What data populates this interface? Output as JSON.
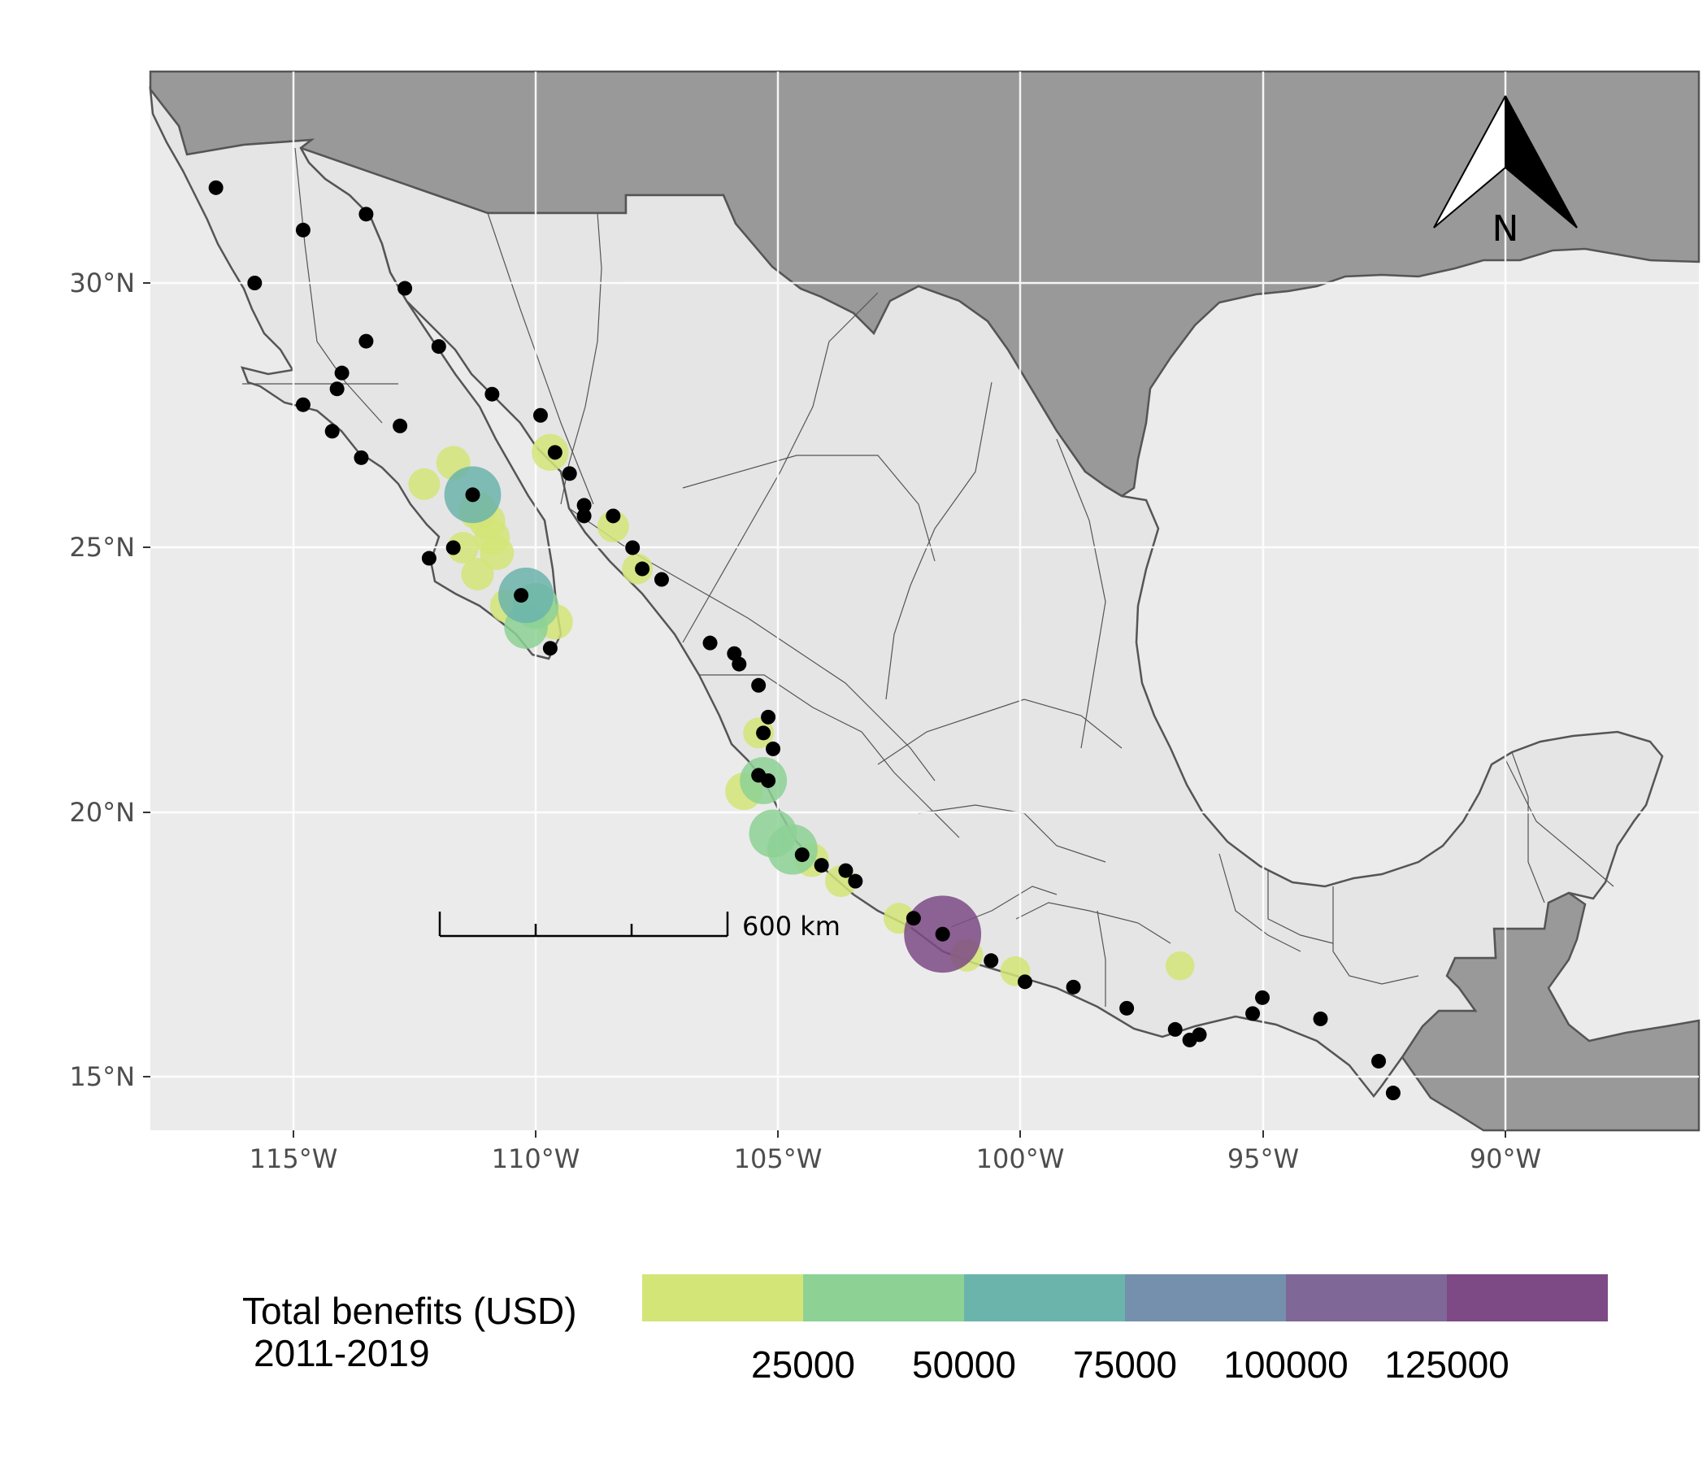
{
  "map": {
    "axes": {
      "x_ticks": [
        "115°W",
        "110°W",
        "105°W",
        "100°W",
        "95°W",
        "90°W"
      ],
      "y_ticks": [
        "30°N",
        "25°N",
        "20°N",
        "15°N"
      ],
      "lon_range": [
        -118,
        -86
      ],
      "lat_range": [
        14,
        34
      ]
    },
    "scale_bar": {
      "label": "600 km"
    },
    "north_arrow": {
      "label": "N"
    },
    "legend": {
      "title_line1": "Total benefits (USD)",
      "title_line2": "2011-2019",
      "ticks": [
        "25000",
        "50000",
        "75000",
        "100000",
        "125000"
      ],
      "bin_colors": [
        "#d4e577",
        "#8dd195",
        "#6bb4ab",
        "#7490ac",
        "#7f6898",
        "#7d4a85"
      ]
    },
    "colors": {
      "ocean": "#ebebeb",
      "mexico": "#e5e5e5",
      "neighbors": "#999999",
      "border": "#555555",
      "site": "#000000"
    }
  },
  "chart_data": {
    "type": "scatter",
    "xlabel": "",
    "ylabel": "",
    "xlim": [
      -118,
      -86
    ],
    "ylim": [
      14,
      34
    ],
    "grid": true,
    "legend_placement": "bottom",
    "site_points": [
      [
        -116.6,
        31.8
      ],
      [
        -115.8,
        30.0
      ],
      [
        -114.8,
        31.0
      ],
      [
        -113.5,
        31.3
      ],
      [
        -112.7,
        29.9
      ],
      [
        -113.5,
        28.9
      ],
      [
        -112.0,
        28.8
      ],
      [
        -114.0,
        28.3
      ],
      [
        -114.1,
        28.0
      ],
      [
        -114.8,
        27.7
      ],
      [
        -114.2,
        27.2
      ],
      [
        -113.6,
        26.7
      ],
      [
        -112.8,
        27.3
      ],
      [
        -110.9,
        27.9
      ],
      [
        -109.9,
        27.5
      ],
      [
        -109.6,
        26.8
      ],
      [
        -109.3,
        26.4
      ],
      [
        -109.0,
        25.8
      ],
      [
        -109.0,
        25.6
      ],
      [
        -108.4,
        25.6
      ],
      [
        -108.0,
        25.0
      ],
      [
        -107.8,
        24.6
      ],
      [
        -107.4,
        24.4
      ],
      [
        -112.2,
        24.8
      ],
      [
        -111.7,
        25.0
      ],
      [
        -111.3,
        26.0
      ],
      [
        -110.3,
        24.1
      ],
      [
        -109.7,
        23.1
      ],
      [
        -106.4,
        23.2
      ],
      [
        -105.9,
        23.0
      ],
      [
        -105.8,
        22.8
      ],
      [
        -105.4,
        22.4
      ],
      [
        -105.2,
        21.8
      ],
      [
        -105.3,
        21.5
      ],
      [
        -105.1,
        21.2
      ],
      [
        -105.4,
        20.7
      ],
      [
        -105.2,
        20.6
      ],
      [
        -104.5,
        19.2
      ],
      [
        -104.1,
        19.0
      ],
      [
        -103.6,
        18.9
      ],
      [
        -103.4,
        18.7
      ],
      [
        -102.2,
        18.0
      ],
      [
        -101.6,
        17.7
      ],
      [
        -100.6,
        17.2
      ],
      [
        -99.9,
        16.8
      ],
      [
        -98.9,
        16.7
      ],
      [
        -97.8,
        16.3
      ],
      [
        -96.8,
        15.9
      ],
      [
        -96.5,
        15.7
      ],
      [
        -96.3,
        15.8
      ],
      [
        -95.2,
        16.2
      ],
      [
        -95.0,
        16.5
      ],
      [
        -93.8,
        16.1
      ],
      [
        -92.6,
        15.3
      ],
      [
        -92.3,
        14.7
      ]
    ],
    "benefit_points": [
      {
        "x": -111.7,
        "y": 26.6,
        "value": 12000
      },
      {
        "x": -112.3,
        "y": 26.2,
        "value": 9000
      },
      {
        "x": -111.3,
        "y": 26.0,
        "value": 62000
      },
      {
        "x": -111.2,
        "y": 25.7,
        "value": 18000
      },
      {
        "x": -111.0,
        "y": 25.5,
        "value": 15000
      },
      {
        "x": -110.9,
        "y": 25.2,
        "value": 14000
      },
      {
        "x": -110.8,
        "y": 24.9,
        "value": 12000
      },
      {
        "x": -111.2,
        "y": 24.5,
        "value": 10000
      },
      {
        "x": -111.5,
        "y": 25.0,
        "value": 9000
      },
      {
        "x": -110.2,
        "y": 24.1,
        "value": 58000
      },
      {
        "x": -110.0,
        "y": 23.9,
        "value": 33000
      },
      {
        "x": -110.2,
        "y": 23.5,
        "value": 28000
      },
      {
        "x": -109.6,
        "y": 23.6,
        "value": 14000
      },
      {
        "x": -110.6,
        "y": 23.9,
        "value": 11000
      },
      {
        "x": -109.7,
        "y": 26.8,
        "value": 16000
      },
      {
        "x": -108.4,
        "y": 25.4,
        "value": 9000
      },
      {
        "x": -107.9,
        "y": 24.6,
        "value": 8000
      },
      {
        "x": -105.4,
        "y": 21.5,
        "value": 8000
      },
      {
        "x": -105.3,
        "y": 20.6,
        "value": 36000
      },
      {
        "x": -105.7,
        "y": 20.4,
        "value": 17000
      },
      {
        "x": -105.1,
        "y": 19.6,
        "value": 38000
      },
      {
        "x": -104.7,
        "y": 19.3,
        "value": 44000
      },
      {
        "x": -104.3,
        "y": 19.1,
        "value": 12000
      },
      {
        "x": -103.7,
        "y": 18.7,
        "value": 9000
      },
      {
        "x": -102.5,
        "y": 18.0,
        "value": 8000
      },
      {
        "x": -101.6,
        "y": 17.7,
        "value": 140000
      },
      {
        "x": -101.1,
        "y": 17.3,
        "value": 10000
      },
      {
        "x": -100.1,
        "y": 17.0,
        "value": 7000
      },
      {
        "x": -96.7,
        "y": 17.1,
        "value": 6000
      }
    ]
  }
}
